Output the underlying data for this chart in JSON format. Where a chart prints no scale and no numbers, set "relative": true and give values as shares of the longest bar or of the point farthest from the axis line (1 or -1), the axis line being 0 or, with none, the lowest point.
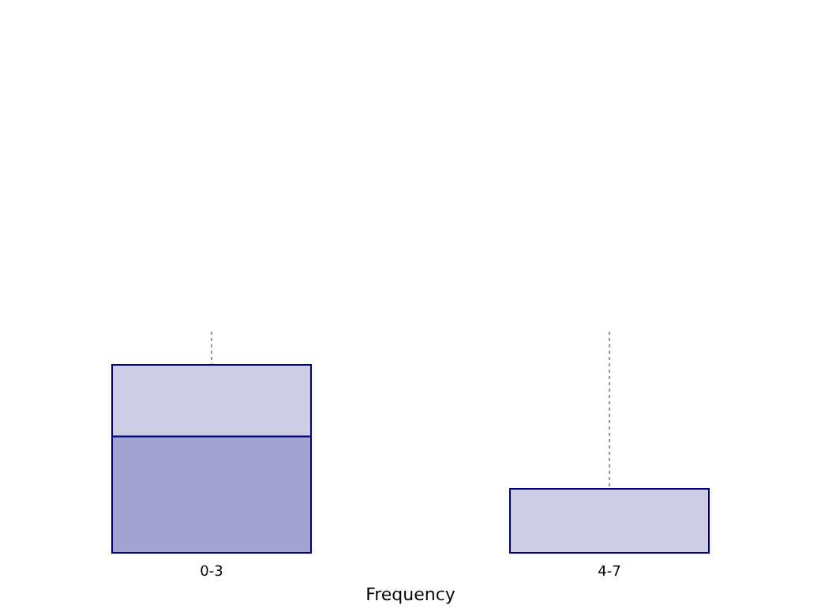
{
  "chart_data": {
    "type": "bar",
    "xlabel": "Frequency",
    "categories": [
      "0-3",
      "4-7"
    ],
    "stacked": true,
    "relative": true,
    "grid": "x",
    "series": [
      {
        "color": "#a3a3d1",
        "values": [
          0.62,
          null
        ]
      },
      {
        "color": "#cdcde6",
        "values": [
          0.38,
          0.34
        ]
      }
    ]
  }
}
